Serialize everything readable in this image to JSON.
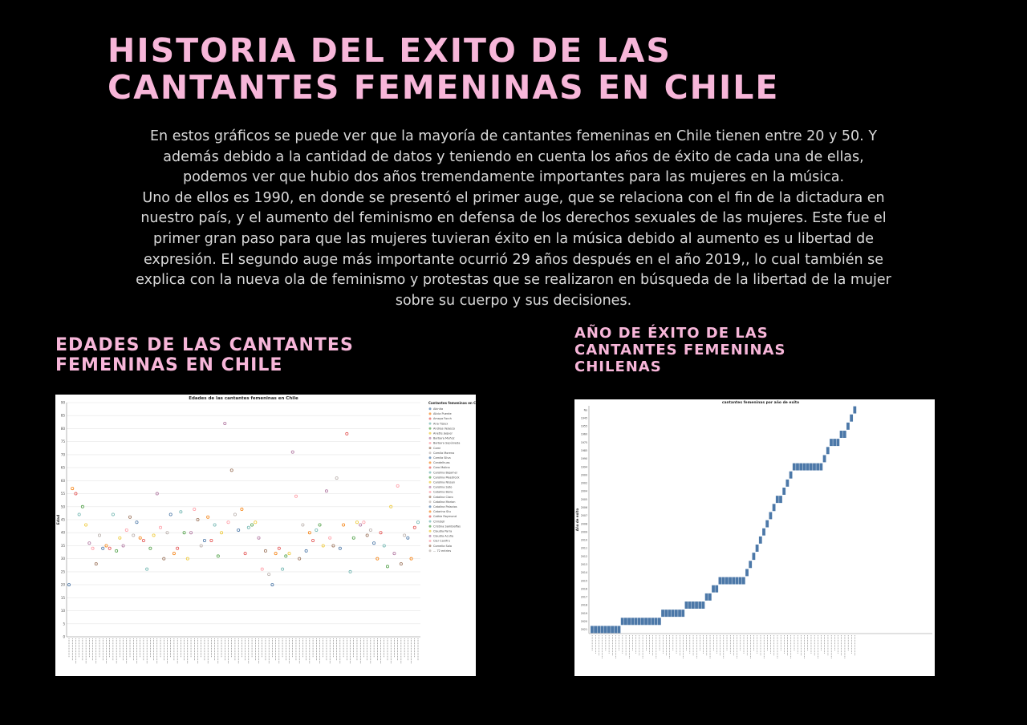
{
  "title": {
    "line1": "HISTORIA DEL EXITO DE LAS",
    "line2": "CANTANTES FEMENINAS EN CHILE"
  },
  "description": {
    "lines": [
      "En estos gráficos se puede ver que la mayoría de cantantes femeninas en Chile tienen entre 20 y 50. Y",
      "además debido a la cantidad de datos y teniendo en cuenta los años de éxito de cada una de ellas,",
      "podemos ver que hubio dos años tremendamente importantes para las mujeres en la música.",
      "Uno de ellos es 1990, en donde se presentó el primer auge, que se relaciona con el fin de la dictadura en",
      "nuestro país, y el aumento  del feminismo en defensa de los derechos sexuales de las mujeres. Este fue el",
      "primer gran paso para que las mujeres tuvieran éxito en la música debido al aumento es u libertad de",
      "expresión. El segundo auge más importante ocurrió 29 años después en el año 2019,, lo cual también se",
      "explica con la nueva ola de feminismo y protestas que se realizaron en búsqueda de la libertad de la mujer",
      "sobre su cuerpo y sus decisiones."
    ]
  },
  "section_left": {
    "line1": "EDADES DE LAS CANTANTES",
    "line2": "FEMENINAS EN CHILE"
  },
  "section_right": {
    "line1": "AÑO DE ÉXITO DE LAS",
    "line2": "CANTANTES FEMENINAS",
    "line3": "CHILENAS"
  },
  "colors": {
    "background": "#000000",
    "title": "#f7b6d9",
    "body_text": "#d9d9d9",
    "bar": "#4c78a8"
  },
  "chart_data": [
    {
      "type": "scatter",
      "title": "Edades de las cantantes femeninas en Chile",
      "xlabel": "",
      "ylabel": "Edad",
      "ylim": [
        0,
        90
      ],
      "yticks": [
        0,
        5,
        10,
        15,
        20,
        25,
        30,
        35,
        40,
        45,
        50,
        55,
        60,
        65,
        70,
        75,
        80,
        85,
        90
      ],
      "grid": true,
      "legend": {
        "title": "Cantantes femeninas en Chile",
        "placement": "right",
        "entries": [
          {
            "name": "Akinita",
            "color": "#4c78a8"
          },
          {
            "name": "Alicia Puente",
            "color": "#f58518"
          },
          {
            "name": "Amaya Forch",
            "color": "#e45756"
          },
          {
            "name": "Ana Tijoux",
            "color": "#72b7b2"
          },
          {
            "name": "Andrea Velasco",
            "color": "#54a24b"
          },
          {
            "name": "Anette Jaquer",
            "color": "#eeca3b"
          },
          {
            "name": "Barbara Muñoz",
            "color": "#b279a2"
          },
          {
            "name": "Barbara Sepúlveda",
            "color": "#ff9da6"
          },
          {
            "name": "Camí",
            "color": "#9d755d"
          },
          {
            "name": "Camila Moreno",
            "color": "#bab0ac"
          },
          {
            "name": "Camila Silva",
            "color": "#4c78a8"
          },
          {
            "name": "Candelhuas",
            "color": "#f58518"
          },
          {
            "name": "Caro Molina",
            "color": "#e45756"
          },
          {
            "name": "Carolina Bejamel",
            "color": "#72b7b2"
          },
          {
            "name": "Carolina Meedrock",
            "color": "#54a24b"
          },
          {
            "name": "Carolina Nissen",
            "color": "#eeca3b"
          },
          {
            "name": "Carolina Soto",
            "color": "#b279a2"
          },
          {
            "name": "Catalina Bone",
            "color": "#ff9da6"
          },
          {
            "name": "Catalina Claro",
            "color": "#9d755d"
          },
          {
            "name": "Catalina Marion",
            "color": "#bab0ac"
          },
          {
            "name": "Catalina Palacios",
            "color": "#4c78a8"
          },
          {
            "name": "Catarina Stu",
            "color": "#f58518"
          },
          {
            "name": "Cathie Raymond",
            "color": "#e45756"
          },
          {
            "name": "Christell",
            "color": "#72b7b2"
          },
          {
            "name": "Cristina Sambiaffas",
            "color": "#54a24b"
          },
          {
            "name": "Claudia Parra",
            "color": "#eeca3b"
          },
          {
            "name": "Claudia Acuña",
            "color": "#b279a2"
          },
          {
            "name": "Cler Canifru",
            "color": "#ff9da6"
          },
          {
            "name": "Cornelia Sola",
            "color": "#9d755d"
          },
          {
            "name": "... 72 entries",
            "color": "#bab0ac"
          }
        ]
      },
      "values": [
        20,
        57,
        55,
        47,
        50,
        43,
        36,
        34,
        28,
        39,
        34,
        35,
        34,
        47,
        33,
        38,
        35,
        41,
        46,
        39,
        44,
        38,
        37,
        26,
        34,
        39,
        55,
        42,
        30,
        40,
        47,
        32,
        34,
        48,
        40,
        30,
        40,
        49,
        45,
        35,
        37,
        46,
        37,
        43,
        31,
        40,
        82,
        44,
        64,
        47,
        41,
        49,
        32,
        42,
        43,
        44,
        38,
        26,
        33,
        24,
        20,
        32,
        34,
        26,
        31,
        32,
        71,
        54,
        30,
        43,
        33,
        40,
        37,
        41,
        43,
        35,
        56,
        38,
        35,
        61,
        34,
        43,
        78,
        25,
        38,
        44,
        43,
        44,
        39,
        41,
        36,
        30,
        40,
        35,
        27,
        50,
        32,
        58,
        28,
        39,
        38,
        30,
        42,
        44
      ]
    },
    {
      "type": "bar",
      "title": "cantantes femeninas por año de exito",
      "xlabel": "",
      "ylabel": "Año de exito",
      "categories_axis": "y",
      "categories": [
        "No",
        "1945",
        "1955",
        "1960",
        "1975",
        "1985",
        "1990",
        "1994",
        "2000",
        "2002",
        "2004",
        "2005",
        "2006",
        "2007",
        "2008",
        "2009",
        "2010",
        "2011",
        "2012",
        "2013",
        "2014",
        "2015",
        "2016",
        "2017",
        "2018",
        "2019",
        "2020",
        "2021"
      ],
      "counts": [
        1,
        1,
        1,
        1,
        1,
        1,
        1,
        2,
        1,
        1,
        1,
        2,
        1,
        1,
        1,
        1,
        1,
        1,
        1,
        1,
        1,
        2,
        1,
        1,
        1,
        1,
        1,
        1
      ],
      "note_counts": "one column per singer ordered by year"
    }
  ]
}
